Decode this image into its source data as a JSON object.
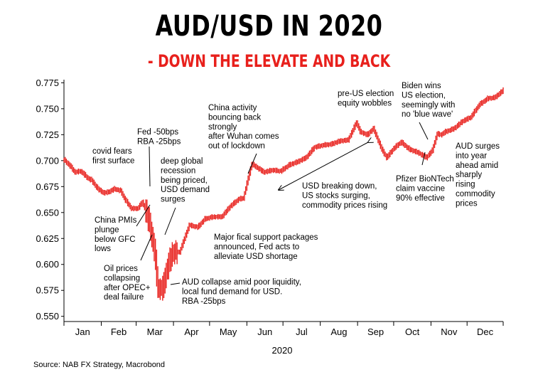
{
  "title": "AUD/USD IN 2020",
  "subtitle": "- DOWN THE ELEVATE AND BACK",
  "source": "Source: NAB FX Strategy, Macrobond",
  "colors": {
    "series": "#e8201c",
    "subtitle": "#e8201c",
    "axis": "#000000"
  },
  "chart_data": {
    "type": "line",
    "xlabel": "2020",
    "ylabel": "",
    "ylim": [
      0.545,
      0.778
    ],
    "yticks": [
      0.775,
      0.75,
      0.725,
      0.7,
      0.675,
      0.65,
      0.625,
      0.6,
      0.575,
      0.55
    ],
    "ytick_labels": [
      "0.775",
      "0.750",
      "0.725",
      "0.700",
      "0.675",
      "0.650",
      "0.625",
      "0.600",
      "0.575",
      "0.550"
    ],
    "months": [
      "Jan",
      "Feb",
      "Mar",
      "Apr",
      "May",
      "Jun",
      "Jul",
      "Aug",
      "Sep",
      "Oct",
      "Nov",
      "Dec"
    ],
    "grid": false,
    "legend": "none",
    "series": [
      {
        "style": "daily high-low bars",
        "x": [
          "2020-01-01",
          "2020-01-06",
          "2020-01-10",
          "2020-01-15",
          "2020-01-20",
          "2020-01-24",
          "2020-01-29",
          "2020-02-03",
          "2020-02-07",
          "2020-02-12",
          "2020-02-17",
          "2020-02-21",
          "2020-02-26",
          "2020-03-02",
          "2020-03-06",
          "2020-03-09",
          "2020-03-12",
          "2020-03-16",
          "2020-03-19",
          "2020-03-23",
          "2020-03-26",
          "2020-03-31",
          "2020-04-06",
          "2020-04-14",
          "2020-04-21",
          "2020-04-27",
          "2020-05-04",
          "2020-05-11",
          "2020-05-18",
          "2020-05-25",
          "2020-05-29",
          "2020-06-03",
          "2020-06-05",
          "2020-06-10",
          "2020-06-15",
          "2020-06-22",
          "2020-06-29",
          "2020-07-06",
          "2020-07-13",
          "2020-07-20",
          "2020-07-27",
          "2020-08-03",
          "2020-08-10",
          "2020-08-17",
          "2020-08-24",
          "2020-08-31",
          "2020-09-03",
          "2020-09-09",
          "2020-09-14",
          "2020-09-21",
          "2020-09-25",
          "2020-10-01",
          "2020-10-07",
          "2020-10-14",
          "2020-10-21",
          "2020-10-28",
          "2020-11-02",
          "2020-11-06",
          "2020-11-09",
          "2020-11-13",
          "2020-11-20",
          "2020-11-27",
          "2020-12-04",
          "2020-12-11",
          "2020-12-18",
          "2020-12-24",
          "2020-12-31"
        ],
        "y": [
          0.701,
          0.695,
          0.689,
          0.69,
          0.684,
          0.681,
          0.673,
          0.669,
          0.67,
          0.673,
          0.671,
          0.662,
          0.654,
          0.654,
          0.66,
          0.652,
          0.64,
          0.615,
          0.578,
          0.577,
          0.594,
          0.612,
          0.612,
          0.638,
          0.636,
          0.644,
          0.646,
          0.646,
          0.656,
          0.663,
          0.664,
          0.688,
          0.697,
          0.693,
          0.689,
          0.691,
          0.69,
          0.696,
          0.699,
          0.703,
          0.713,
          0.715,
          0.716,
          0.719,
          0.72,
          0.737,
          0.728,
          0.725,
          0.731,
          0.711,
          0.703,
          0.712,
          0.718,
          0.711,
          0.708,
          0.703,
          0.71,
          0.726,
          0.725,
          0.728,
          0.731,
          0.738,
          0.742,
          0.754,
          0.76,
          0.761,
          0.768
        ]
      }
    ],
    "annotations": [
      {
        "lines": [
          "covid fears",
          "first surface"
        ]
      },
      {
        "lines": [
          "China PMIs",
          "plunge",
          "below GFC",
          "lows"
        ]
      },
      {
        "lines": [
          "Oil prices",
          "collapsing",
          "after OPEC+",
          "deal failure"
        ]
      },
      {
        "lines": [
          "Fed -50bps",
          "RBA -25bps"
        ]
      },
      {
        "lines": [
          "deep global",
          "recession",
          "being priced,",
          "USD demand",
          "surges"
        ]
      },
      {
        "lines": [
          "AUD collapse amid poor liquidity,",
          "local fund demand for USD.",
          "RBA -25bps"
        ]
      },
      {
        "lines": [
          "Major fical support packages",
          "announced, Fed acts to",
          "alleviate USD shortage"
        ]
      },
      {
        "lines": [
          "China activity",
          "bouncing back",
          "strongly",
          "after Wuhan comes",
          "out of lockdown"
        ]
      },
      {
        "lines": [
          "USD breaking down,",
          "US stocks surging,",
          "commodity prices rising"
        ]
      },
      {
        "lines": [
          "pre-US election",
          "equity wobbles"
        ]
      },
      {
        "lines": [
          "Biden wins",
          "US election,",
          "seemingly with",
          "no 'blue wave'"
        ]
      },
      {
        "lines": [
          "Pfizer BioNTech",
          "claim vaccine",
          "90% effective"
        ]
      },
      {
        "lines": [
          "AUD surges",
          "into year",
          "ahead amid",
          "sharply",
          "rising",
          "commodity",
          "prices"
        ]
      }
    ]
  }
}
